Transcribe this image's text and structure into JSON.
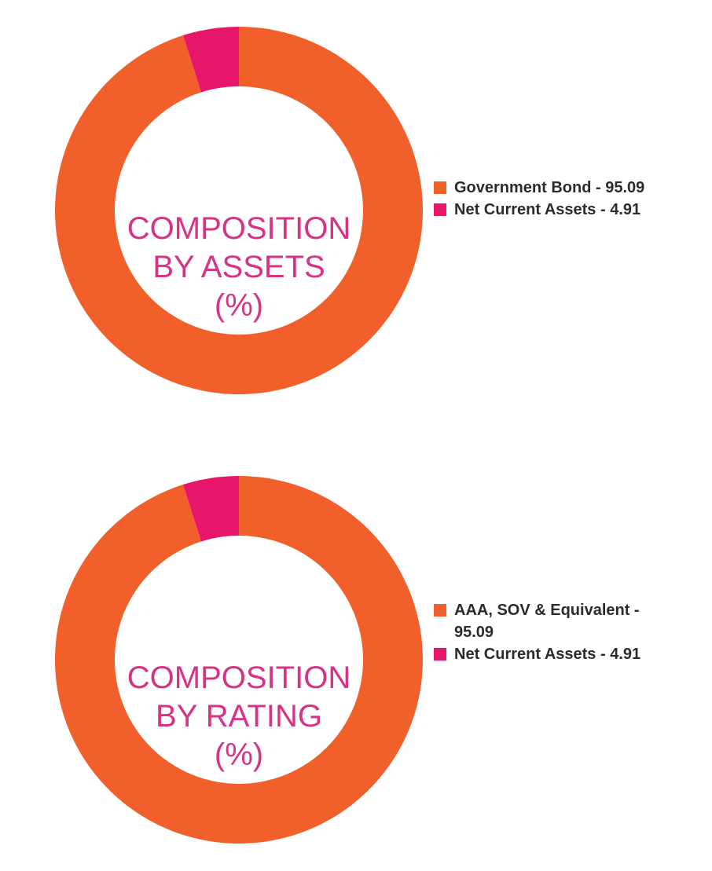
{
  "chart_data": [
    {
      "type": "pie",
      "title_lines": [
        "COMPOSITION",
        "BY ASSETS",
        "(%)"
      ],
      "categories": [
        "Government Bond",
        "Net Current Assets"
      ],
      "values": [
        95.09,
        4.91
      ],
      "colors": [
        "#f15f2a",
        "#e8166b"
      ],
      "legend_labels": [
        "Government Bond - 95.09",
        "Net Current Assets - 4.91"
      ],
      "legend_position": "right"
    },
    {
      "type": "pie",
      "title_lines": [
        "COMPOSITION",
        "BY RATING",
        "(%)"
      ],
      "categories": [
        "AAA, SOV & Equivalent",
        "Net Current Assets"
      ],
      "values": [
        95.09,
        4.91
      ],
      "colors": [
        "#f15f2a",
        "#e8166b"
      ],
      "legend_labels": [
        "AAA, SOV & Equivalent - 95.09",
        "Net Current Assets - 4.91"
      ],
      "legend_position": "right"
    }
  ],
  "style": {
    "title_color": "#d63384",
    "legend_text_color": "#2b2b2b"
  }
}
